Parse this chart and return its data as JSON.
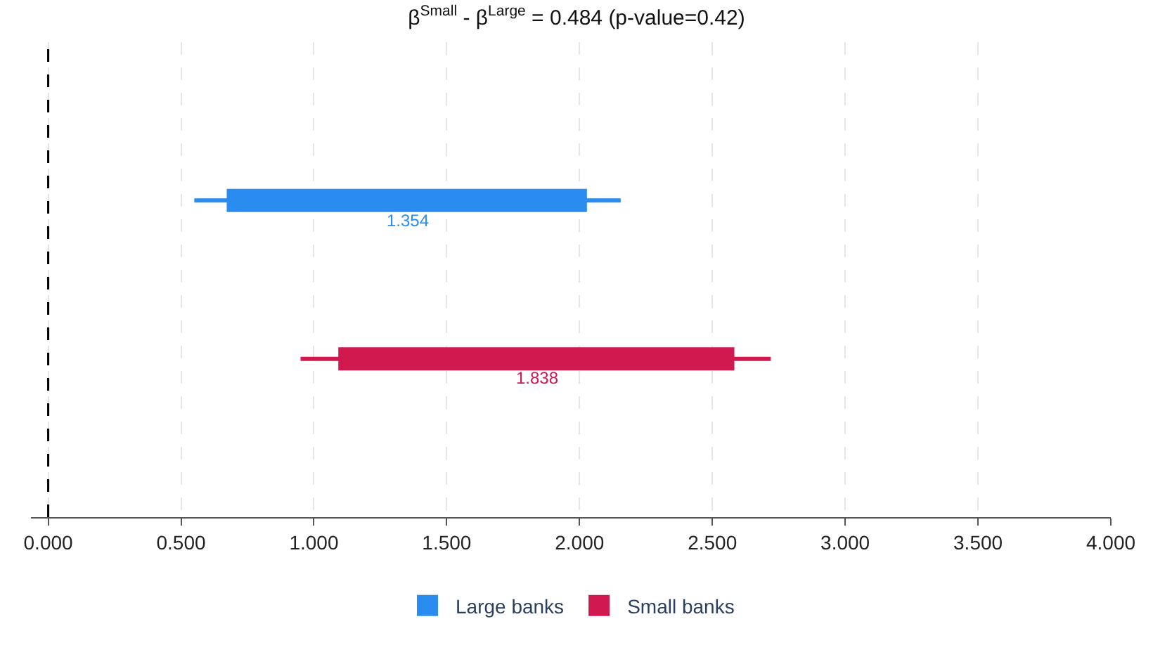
{
  "chart_data": {
    "type": "box",
    "orientation": "horizontal",
    "title": "β$^{Small}$ - β$^{Large}$ = 0.484 (p-value=0.42)",
    "categories": [
      null,
      null
    ],
    "series": [
      {
        "name": "Large banks",
        "color": "#2b8cf0",
        "boxes": [
          {
            "low": 0.55,
            "q1": 0.68,
            "median": 1.354,
            "q3": 2.02,
            "high": 2.155
          },
          null
        ],
        "value_labels": [
          "1.354",
          null
        ]
      },
      {
        "name": "Small banks",
        "color": "#d0194f",
        "boxes": [
          null,
          {
            "low": 0.95,
            "q1": 1.1,
            "median": 1.838,
            "q3": 2.575,
            "high": 2.72
          }
        ],
        "value_labels": [
          null,
          "1.838"
        ]
      }
    ],
    "xlim": [
      -0.065,
      4.0
    ],
    "xticks": [
      {
        "value": 0,
        "label": "0.000"
      },
      {
        "value": 0.5,
        "label": "0.500"
      },
      {
        "value": 1,
        "label": "1.000"
      },
      {
        "value": 1.5,
        "label": "1.500"
      },
      {
        "value": 2,
        "label": "2.000"
      },
      {
        "value": 2.5,
        "label": "2.500"
      },
      {
        "value": 3,
        "label": "3.000"
      },
      {
        "value": 3.5,
        "label": "3.500"
      },
      {
        "value": 4,
        "label": "4.000"
      }
    ],
    "ref_lines": [
      {
        "axis": "x",
        "value": 0,
        "color": "#000000",
        "line_style": "dashed"
      }
    ],
    "grid": "x",
    "legend": "bottom",
    "tick_labels": "x"
  }
}
